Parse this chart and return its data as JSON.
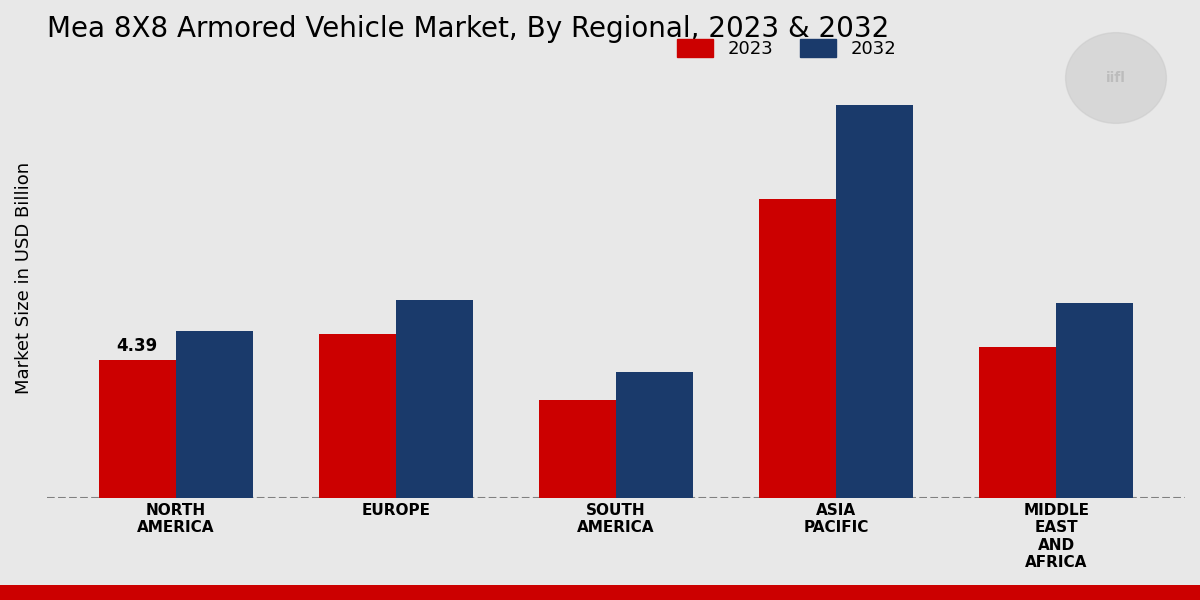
{
  "title": "Mea 8X8 Armored Vehicle Market, By Regional, 2023 & 2032",
  "ylabel": "Market Size in USD Billion",
  "categories": [
    "NORTH\nAMERICA",
    "EUROPE",
    "SOUTH\nAMERICA",
    "ASIA\nPACIFIC",
    "MIDDLE\nEAST\nAND\nAFRICA"
  ],
  "values_2023": [
    4.39,
    5.2,
    3.1,
    9.5,
    4.8
  ],
  "values_2032": [
    5.3,
    6.3,
    4.0,
    12.5,
    6.2
  ],
  "color_2023": "#cc0000",
  "color_2032": "#1a3a6b",
  "label_2023": "2023",
  "label_2032": "2032",
  "annotation_value": "4.39",
  "annotation_index": 0,
  "bar_width": 0.35,
  "ylim": [
    0,
    14
  ],
  "background_color": "#e8e8e8",
  "title_fontsize": 20,
  "axis_label_fontsize": 13,
  "tick_fontsize": 11,
  "legend_fontsize": 13
}
